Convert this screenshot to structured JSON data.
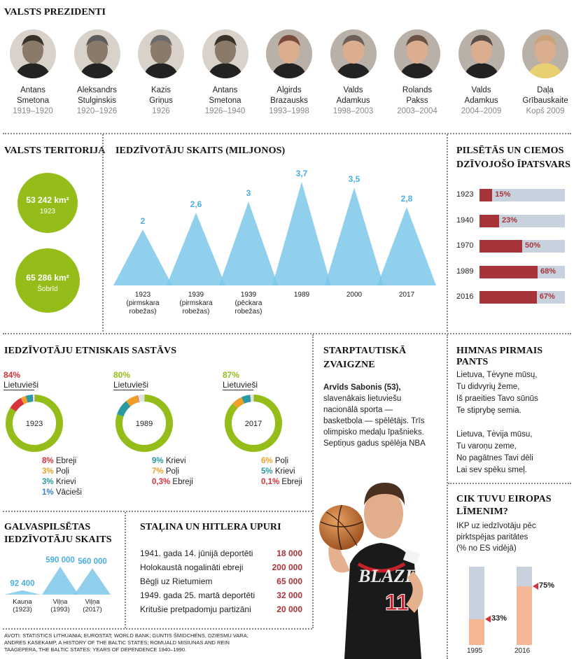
{
  "presidents": {
    "title": "VALSTS PREZIDENTI",
    "items": [
      {
        "first": "Antans",
        "last": "Smetona",
        "years": "1919–1920"
      },
      {
        "first": "Aleksandrs",
        "last": "Stulginskis",
        "years": "1920–1926"
      },
      {
        "first": "Kazis",
        "last": "Griņus",
        "years": "1926"
      },
      {
        "first": "Antans",
        "last": "Smetona",
        "years": "1926–1940"
      },
      {
        "first": "Algirds",
        "last": "Brazausks",
        "years": "1993–1998"
      },
      {
        "first": "Valds",
        "last": "Adamkus",
        "years": "1998–2003"
      },
      {
        "first": "Rolands",
        "last": "Pakss",
        "years": "2003–2004"
      },
      {
        "first": "Valds",
        "last": "Adamkus",
        "years": "2004–2009"
      },
      {
        "first": "Daļa",
        "last": "Grībauskaite",
        "years": "Kopš 2009"
      }
    ]
  },
  "territory": {
    "title": "VALSTS TERITORIJA",
    "items": [
      {
        "value": "53 242 km²",
        "label": "1923"
      },
      {
        "value": "65 286 km²",
        "label": "Šobrīd"
      }
    ]
  },
  "population": {
    "title": "IEDZĪVOTĀJU SKAITS (MILJONOS)"
  },
  "urban": {
    "title_1": "PILSĒTĀS UN CIEMOS",
    "title_2": "DZĪVOJOŠO ĪPATSVARS"
  },
  "ethnic": {
    "title": "IEDZĪVOTĀJU ETNISKAIS SASTĀVS",
    "main_label": "Lietuvieši"
  },
  "star": {
    "title_1": "STARPTAUTISKĀ",
    "title_2": "ZVAIGZNE",
    "name": "Arvīds Sabonis (53),",
    "lines": [
      "slavenākais lietuviešu",
      "nacionālā sporta —",
      "basketbola — spēlētājs. Trīs",
      "olimpisko medaļu īpašnieks.",
      "Septiņus gadus spēlēja NBA"
    ]
  },
  "anthem": {
    "title": "HIMNAS PIRMAIS PANTS",
    "lines": [
      "Lietuva, Tėvyne mūsų,",
      "Tu didvyrių žeme,",
      "Iš praeities Tavo sūnūs",
      "Te stiprybę semia.",
      "",
      "Lietuva, Tėvija mūsu,",
      "Tu varoņu zeme,",
      "No pagātnes Tavi dēli",
      "Lai sev spēku smeļ."
    ]
  },
  "capital": {
    "title_1": "GALVASPILSĒTAS",
    "title_2": "IEDZĪVOTĀJU SKAITS"
  },
  "victims": {
    "title": "STAĻINA UN HITLERA UPURI",
    "rows": [
      {
        "label": "1941. gada 14. jūnijā deportēti",
        "value": "18 000"
      },
      {
        "label": "Holokaustā nogalināti ebreji",
        "value": "200 000"
      },
      {
        "label": "Bēgļi uz Rietumiem",
        "value": "65 000"
      },
      {
        "label": "1949. gada 25. martā deportēti",
        "value": "32 000"
      },
      {
        "label": "Kritušie pretpadomju partizāni",
        "value": "20 000"
      }
    ]
  },
  "europe": {
    "title_1": "CIK TUVU EIROPAS",
    "title_2": "LĪMENIM?",
    "desc": [
      "IKP uz iedzīvotāju pēc",
      "pirktspējas paritātes",
      "(% no ES vidējā)"
    ]
  },
  "sources": {
    "line1": "AVOTI: STATISTICS LITHUANIA; EUROSTAT; WORLD BANK; GUNTIS ŠMIDCHENS, DZIESMU VARA;",
    "line2": "ANDRES KASEKAMP, A HISTORY OF THE BALTIC STATES; ROMUALD MISIUNAS AND REIN",
    "line3": "TAAGEPERA, THE BALTIC STATES: YEARS OF DEPENDENCE 1940–1990."
  },
  "colors": {
    "accent_red": "#a8343a",
    "green": "#95bd1a",
    "sky": "#7ec8ea",
    "track": "#c7d2de",
    "teal": "#2a9aa0",
    "orange": "#f0a02a",
    "blue": "#3a7fc0"
  },
  "chart_data": [
    {
      "type": "area",
      "title": "IEDZĪVOTĀJU SKAITS (MILJONOS)",
      "categories": [
        "1923\n(pirmskara\nrobežas)",
        "1939\n(pirmskara\nrobežas)",
        "1939\n(pēckara\nrobežas)",
        "1989",
        "2000",
        "2017"
      ],
      "values": [
        2,
        2.6,
        3,
        3.7,
        3.5,
        2.8
      ],
      "labels": [
        "2",
        "2,6",
        "3",
        "3,7",
        "3,5",
        "2,8"
      ]
    },
    {
      "type": "bar",
      "title": "PILSĒTĀS UN CIEMOS DZĪVOJOŠO ĪPATSVARS",
      "categories": [
        "1923",
        "1940",
        "1970",
        "1989",
        "2016"
      ],
      "values": [
        15,
        23,
        50,
        68,
        67
      ],
      "unit": "%"
    },
    {
      "type": "pie",
      "title": "IEDZĪVOTĀJU ETNISKAIS SASTĀVS",
      "charts": [
        {
          "year": "1923",
          "main": {
            "name": "Lietuvieši",
            "value": 84,
            "label": "84%",
            "color": "#d8323a"
          },
          "others": [
            {
              "name": "Ebreji",
              "value": 8,
              "label": "8%",
              "color": "#d8323a"
            },
            {
              "name": "Poļi",
              "value": 3,
              "label": "3%",
              "color": "#f0a02a"
            },
            {
              "name": "Krievi",
              "value": 3,
              "label": "3%",
              "color": "#2a9aa0"
            },
            {
              "name": "Vācieši",
              "value": 1,
              "label": "1%",
              "color": "#3a7fc0"
            }
          ]
        },
        {
          "year": "1989",
          "main": {
            "name": "Lietuvieši",
            "value": 80,
            "label": "80%",
            "color": "#95bd1a"
          },
          "others": [
            {
              "name": "Krievi",
              "value": 9,
              "label": "9%",
              "color": "#2a9aa0"
            },
            {
              "name": "Poļi",
              "value": 7,
              "label": "7%",
              "color": "#f0a02a"
            },
            {
              "name": "Ebreji",
              "value": 0.3,
              "label": "0,3%",
              "color": "#d8323a"
            }
          ]
        },
        {
          "year": "2017",
          "main": {
            "name": "Lietuvieši",
            "value": 87,
            "label": "87%",
            "color": "#95bd1a"
          },
          "others": [
            {
              "name": "Poļi",
              "value": 6,
              "label": "6%",
              "color": "#f0a02a"
            },
            {
              "name": "Krievi",
              "value": 5,
              "label": "5%",
              "color": "#2a9aa0"
            },
            {
              "name": "Ebreji",
              "value": 0.1,
              "label": "0,1%",
              "color": "#d8323a"
            }
          ]
        }
      ]
    },
    {
      "type": "area",
      "title": "GALVASPILSĒTAS IEDZĪVOTĀJU SKAITS",
      "categories": [
        "Kauņa\n(1923)",
        "Viļņa\n(1993)",
        "Viļņa\n(2017)"
      ],
      "values": [
        92400,
        590000,
        560000
      ],
      "labels": [
        "92 400",
        "590 000",
        "560 000"
      ]
    },
    {
      "type": "bar",
      "title": "CIK TUVU EIROPAS LĪMENIM?",
      "categories": [
        "1995",
        "2016"
      ],
      "values": [
        33,
        75
      ],
      "labels": [
        "33%",
        "75%"
      ],
      "unit": "%"
    }
  ]
}
